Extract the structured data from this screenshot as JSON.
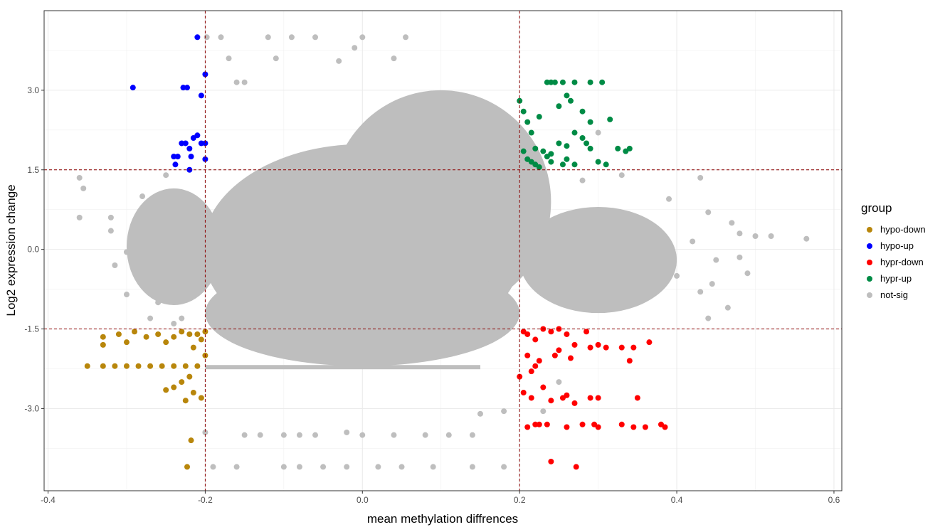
{
  "chart_data": {
    "type": "scatter",
    "xlabel": "mean methylation diffrences",
    "ylabel": "Log2 expression change",
    "xlim": [
      -0.405,
      0.61
    ],
    "ylim": [
      -4.55,
      4.5
    ],
    "x_ticks": [
      -0.4,
      -0.2,
      0.0,
      0.2,
      0.4,
      0.6
    ],
    "x_tick_labels": [
      "-0.4",
      "-0.2",
      "0.0",
      "0.2",
      "0.4",
      "0.6"
    ],
    "y_ticks": [
      -3.0,
      -1.5,
      0.0,
      1.5,
      3.0
    ],
    "y_tick_labels": [
      "-3.0",
      "-1.5",
      "0.0",
      "1.5",
      "3.0"
    ],
    "thresholds": {
      "x": [
        -0.2,
        0.2
      ],
      "y": [
        -1.5,
        1.5
      ],
      "color": "#8b0000"
    },
    "grid": true,
    "legend": {
      "title": "group",
      "placement": "right",
      "entries": [
        {
          "name": "hypo-down",
          "color": "#b8860b"
        },
        {
          "name": "hypo-up",
          "color": "#0000ff"
        },
        {
          "name": "hypr-down",
          "color": "#ff0000"
        },
        {
          "name": "hypr-up",
          "color": "#008b45"
        },
        {
          "name": "not-sig",
          "color": "#bebebe"
        }
      ]
    },
    "series": [
      {
        "name": "hypo-up",
        "color": "#0000ff",
        "points": [
          [
            -0.21,
            4.0
          ],
          [
            -0.292,
            3.05
          ],
          [
            -0.228,
            3.05
          ],
          [
            -0.223,
            3.05
          ],
          [
            -0.2,
            3.3
          ],
          [
            -0.205,
            2.9
          ],
          [
            -0.225,
            2.0
          ],
          [
            -0.23,
            2.0
          ],
          [
            -0.21,
            2.15
          ],
          [
            -0.215,
            2.1
          ],
          [
            -0.2,
            2.0
          ],
          [
            -0.205,
            2.0
          ],
          [
            -0.22,
            1.9
          ],
          [
            -0.235,
            1.75
          ],
          [
            -0.238,
            1.6
          ],
          [
            -0.24,
            1.75
          ],
          [
            -0.218,
            1.75
          ],
          [
            -0.2,
            1.7
          ],
          [
            -0.22,
            1.5
          ]
        ]
      },
      {
        "name": "hypr-up",
        "color": "#008b45",
        "points": [
          [
            0.2,
            2.8
          ],
          [
            0.205,
            2.6
          ],
          [
            0.21,
            2.4
          ],
          [
            0.215,
            2.2
          ],
          [
            0.225,
            2.5
          ],
          [
            0.235,
            3.15
          ],
          [
            0.24,
            3.15
          ],
          [
            0.245,
            3.15
          ],
          [
            0.255,
            3.15
          ],
          [
            0.27,
            3.15
          ],
          [
            0.29,
            3.15
          ],
          [
            0.305,
            3.15
          ],
          [
            0.25,
            2.7
          ],
          [
            0.26,
            2.9
          ],
          [
            0.265,
            2.8
          ],
          [
            0.28,
            2.6
          ],
          [
            0.29,
            2.4
          ],
          [
            0.315,
            2.45
          ],
          [
            0.27,
            2.2
          ],
          [
            0.28,
            2.1
          ],
          [
            0.285,
            2.0
          ],
          [
            0.29,
            1.9
          ],
          [
            0.25,
            2.0
          ],
          [
            0.26,
            1.95
          ],
          [
            0.22,
            1.9
          ],
          [
            0.23,
            1.85
          ],
          [
            0.24,
            1.8
          ],
          [
            0.21,
            1.7
          ],
          [
            0.22,
            1.6
          ],
          [
            0.215,
            1.65
          ],
          [
            0.24,
            1.65
          ],
          [
            0.255,
            1.6
          ],
          [
            0.27,
            1.6
          ],
          [
            0.3,
            1.65
          ],
          [
            0.31,
            1.6
          ],
          [
            0.325,
            1.9
          ],
          [
            0.34,
            1.9
          ],
          [
            0.335,
            1.85
          ],
          [
            0.26,
            1.7
          ],
          [
            0.235,
            1.75
          ],
          [
            0.205,
            1.85
          ],
          [
            0.225,
            1.55
          ]
        ]
      },
      {
        "name": "hypr-down",
        "color": "#ff0000",
        "points": [
          [
            0.205,
            -1.55
          ],
          [
            0.21,
            -1.6
          ],
          [
            0.22,
            -1.7
          ],
          [
            0.23,
            -1.5
          ],
          [
            0.24,
            -1.55
          ],
          [
            0.25,
            -1.5
          ],
          [
            0.26,
            -1.6
          ],
          [
            0.27,
            -1.8
          ],
          [
            0.285,
            -1.55
          ],
          [
            0.29,
            -1.85
          ],
          [
            0.3,
            -1.8
          ],
          [
            0.31,
            -1.85
          ],
          [
            0.33,
            -1.85
          ],
          [
            0.345,
            -1.85
          ],
          [
            0.365,
            -1.75
          ],
          [
            0.34,
            -2.1
          ],
          [
            0.21,
            -2.0
          ],
          [
            0.215,
            -2.3
          ],
          [
            0.22,
            -2.2
          ],
          [
            0.225,
            -2.1
          ],
          [
            0.2,
            -2.4
          ],
          [
            0.205,
            -2.7
          ],
          [
            0.215,
            -2.8
          ],
          [
            0.23,
            -2.6
          ],
          [
            0.24,
            -2.85
          ],
          [
            0.255,
            -2.8
          ],
          [
            0.26,
            -2.75
          ],
          [
            0.27,
            -2.9
          ],
          [
            0.29,
            -2.8
          ],
          [
            0.3,
            -2.8
          ],
          [
            0.35,
            -2.8
          ],
          [
            0.21,
            -3.35
          ],
          [
            0.22,
            -3.3
          ],
          [
            0.225,
            -3.3
          ],
          [
            0.235,
            -3.3
          ],
          [
            0.26,
            -3.35
          ],
          [
            0.28,
            -3.3
          ],
          [
            0.295,
            -3.3
          ],
          [
            0.3,
            -3.35
          ],
          [
            0.33,
            -3.3
          ],
          [
            0.345,
            -3.35
          ],
          [
            0.36,
            -3.35
          ],
          [
            0.38,
            -3.3
          ],
          [
            0.385,
            -3.35
          ],
          [
            0.24,
            -4.0
          ],
          [
            0.272,
            -4.1
          ],
          [
            0.245,
            -2.0
          ],
          [
            0.25,
            -1.9
          ],
          [
            0.265,
            -2.05
          ]
        ]
      },
      {
        "name": "hypo-down",
        "color": "#b8860b",
        "points": [
          [
            -0.35,
            -2.2
          ],
          [
            -0.33,
            -2.2
          ],
          [
            -0.315,
            -2.2
          ],
          [
            -0.3,
            -2.2
          ],
          [
            -0.285,
            -2.2
          ],
          [
            -0.27,
            -2.2
          ],
          [
            -0.255,
            -2.2
          ],
          [
            -0.24,
            -2.2
          ],
          [
            -0.225,
            -2.2
          ],
          [
            -0.21,
            -2.2
          ],
          [
            -0.33,
            -1.65
          ],
          [
            -0.33,
            -1.8
          ],
          [
            -0.31,
            -1.6
          ],
          [
            -0.3,
            -1.75
          ],
          [
            -0.29,
            -1.55
          ],
          [
            -0.275,
            -1.65
          ],
          [
            -0.26,
            -1.6
          ],
          [
            -0.25,
            -1.75
          ],
          [
            -0.24,
            -1.65
          ],
          [
            -0.23,
            -1.55
          ],
          [
            -0.22,
            -1.6
          ],
          [
            -0.21,
            -1.6
          ],
          [
            -0.2,
            -1.55
          ],
          [
            -0.205,
            -1.7
          ],
          [
            -0.215,
            -1.85
          ],
          [
            -0.2,
            -2.0
          ],
          [
            -0.22,
            -2.4
          ],
          [
            -0.23,
            -2.5
          ],
          [
            -0.215,
            -2.7
          ],
          [
            -0.205,
            -2.8
          ],
          [
            -0.225,
            -2.85
          ],
          [
            -0.24,
            -2.6
          ],
          [
            -0.25,
            -2.65
          ],
          [
            -0.218,
            -3.6
          ],
          [
            -0.223,
            -4.1
          ]
        ]
      },
      {
        "name": "not-sig",
        "color": "#bebebe",
        "core": {
          "center": [
            0.0,
            0.0
          ],
          "radius_x": 0.21,
          "radius_y": 1.55
        },
        "points": [
          [
            -0.198,
            4.0
          ],
          [
            -0.18,
            4.0
          ],
          [
            -0.12,
            4.0
          ],
          [
            -0.09,
            4.0
          ],
          [
            -0.06,
            4.0
          ],
          [
            0.0,
            4.0
          ],
          [
            0.055,
            4.0
          ],
          [
            -0.17,
            3.6
          ],
          [
            -0.11,
            3.6
          ],
          [
            -0.03,
            3.55
          ],
          [
            0.04,
            3.6
          ],
          [
            -0.01,
            3.8
          ],
          [
            -0.16,
            3.15
          ],
          [
            -0.15,
            3.15
          ],
          [
            -0.36,
            1.35
          ],
          [
            -0.355,
            1.15
          ],
          [
            -0.36,
            0.6
          ],
          [
            -0.32,
            0.6
          ],
          [
            -0.29,
            0.45
          ],
          [
            -0.32,
            0.35
          ],
          [
            -0.3,
            -0.05
          ],
          [
            -0.315,
            -0.3
          ],
          [
            -0.3,
            -0.85
          ],
          [
            -0.27,
            -1.3
          ],
          [
            -0.23,
            -1.3
          ],
          [
            0.4,
            -0.5
          ],
          [
            0.43,
            -0.8
          ],
          [
            0.44,
            -1.3
          ],
          [
            0.465,
            -1.1
          ],
          [
            0.45,
            -0.2
          ],
          [
            0.48,
            -0.15
          ],
          [
            0.5,
            0.25
          ],
          [
            0.52,
            0.25
          ],
          [
            0.565,
            0.2
          ],
          [
            0.47,
            0.5
          ],
          [
            0.48,
            0.3
          ],
          [
            0.44,
            0.7
          ],
          [
            0.42,
            0.15
          ],
          [
            0.43,
            1.35
          ],
          [
            0.39,
            0.95
          ],
          [
            0.445,
            -0.65
          ],
          [
            0.49,
            -0.45
          ],
          [
            -0.15,
            -3.5
          ],
          [
            -0.13,
            -3.5
          ],
          [
            -0.1,
            -3.5
          ],
          [
            -0.08,
            -3.5
          ],
          [
            -0.06,
            -3.5
          ],
          [
            -0.02,
            -3.45
          ],
          [
            0.0,
            -3.5
          ],
          [
            0.04,
            -3.5
          ],
          [
            0.08,
            -3.5
          ],
          [
            0.11,
            -3.5
          ],
          [
            0.14,
            -3.5
          ],
          [
            -0.2,
            -3.45
          ],
          [
            -0.19,
            -4.1
          ],
          [
            -0.16,
            -4.1
          ],
          [
            -0.1,
            -4.1
          ],
          [
            -0.08,
            -4.1
          ],
          [
            -0.05,
            -4.1
          ],
          [
            -0.02,
            -4.1
          ],
          [
            0.02,
            -4.1
          ],
          [
            0.05,
            -4.1
          ],
          [
            0.09,
            -4.1
          ],
          [
            0.14,
            -4.1
          ],
          [
            0.18,
            -4.1
          ],
          [
            0.15,
            -3.1
          ],
          [
            0.18,
            -3.05
          ],
          [
            0.23,
            -3.05
          ],
          [
            0.25,
            -2.5
          ],
          [
            0.32,
            -0.2
          ],
          [
            0.35,
            0.45
          ],
          [
            0.36,
            -0.6
          ],
          [
            0.3,
            2.2
          ],
          [
            0.33,
            1.4
          ],
          [
            0.28,
            1.3
          ],
          [
            -0.25,
            1.4
          ],
          [
            -0.28,
            1.0
          ],
          [
            -0.26,
            -1.0
          ],
          [
            -0.24,
            -1.4
          ],
          [
            -0.26,
            0.8
          ]
        ]
      }
    ]
  }
}
